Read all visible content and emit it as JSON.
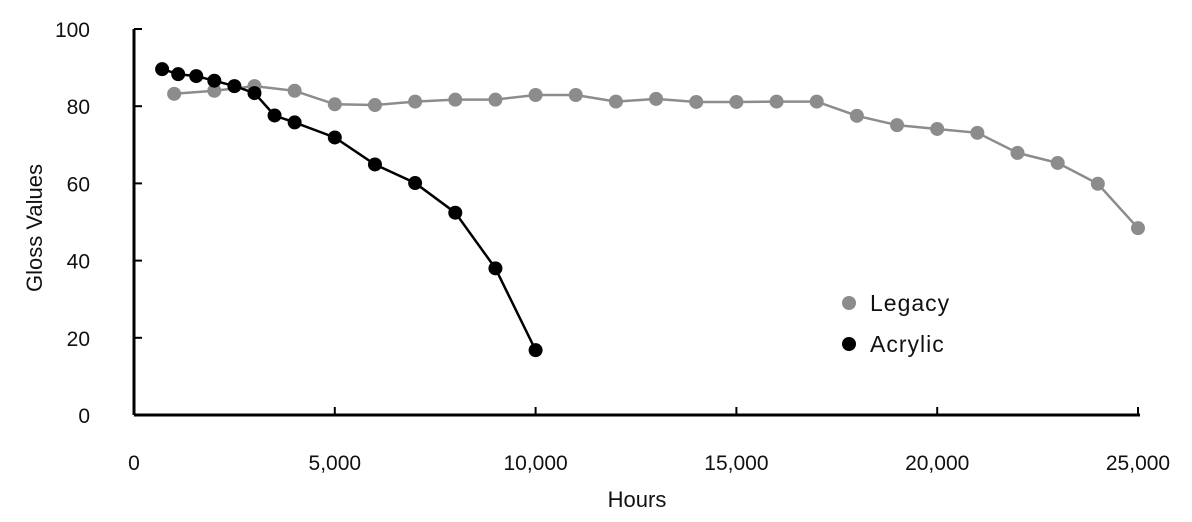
{
  "chart_data": {
    "type": "line",
    "title": "",
    "xlabel": "Hours",
    "ylabel": "Gloss Values",
    "xlim": [
      0,
      25000
    ],
    "ylim": [
      0,
      100
    ],
    "x_ticks": [
      0,
      5000,
      10000,
      15000,
      20000,
      25000
    ],
    "x_tick_labels": [
      "0",
      "5,000",
      "10,000",
      "15,000",
      "20,000",
      "25,000"
    ],
    "y_ticks": [
      0,
      20,
      40,
      60,
      80,
      100
    ],
    "y_tick_labels": [
      "0",
      "20",
      "40",
      "60",
      "80",
      "100"
    ],
    "grid": false,
    "legend_position": "right",
    "series": [
      {
        "name": "Legacy",
        "color": "#8c8c8c",
        "points": [
          [
            1000,
            83.2
          ],
          [
            2000,
            84.0
          ],
          [
            3000,
            85.2
          ],
          [
            4000,
            84.0
          ],
          [
            5000,
            80.5
          ],
          [
            6000,
            80.3
          ],
          [
            7000,
            81.2
          ],
          [
            8000,
            81.7
          ],
          [
            9000,
            81.7
          ],
          [
            10000,
            82.9
          ],
          [
            11000,
            82.9
          ],
          [
            12000,
            81.2
          ],
          [
            13000,
            81.9
          ],
          [
            14000,
            81.1
          ],
          [
            15000,
            81.1
          ],
          [
            16000,
            81.2
          ],
          [
            17000,
            81.2
          ],
          [
            18000,
            77.5
          ],
          [
            19000,
            75.1
          ],
          [
            20000,
            74.1
          ],
          [
            21000,
            73.1
          ],
          [
            22000,
            67.9
          ],
          [
            23000,
            65.3
          ],
          [
            24000,
            59.9
          ],
          [
            25000,
            48.4
          ]
        ]
      },
      {
        "name": "Acrylic",
        "color": "#000000",
        "points": [
          [
            700,
            89.6
          ],
          [
            1100,
            88.3
          ],
          [
            1550,
            87.8
          ],
          [
            2000,
            86.6
          ],
          [
            2500,
            85.2
          ],
          [
            3000,
            83.4
          ],
          [
            3500,
            77.6
          ],
          [
            4000,
            75.8
          ],
          [
            5000,
            71.9
          ],
          [
            6000,
            64.9
          ],
          [
            7000,
            60.1
          ],
          [
            8000,
            52.4
          ],
          [
            9000,
            38.0
          ],
          [
            10000,
            16.8
          ]
        ]
      }
    ]
  }
}
